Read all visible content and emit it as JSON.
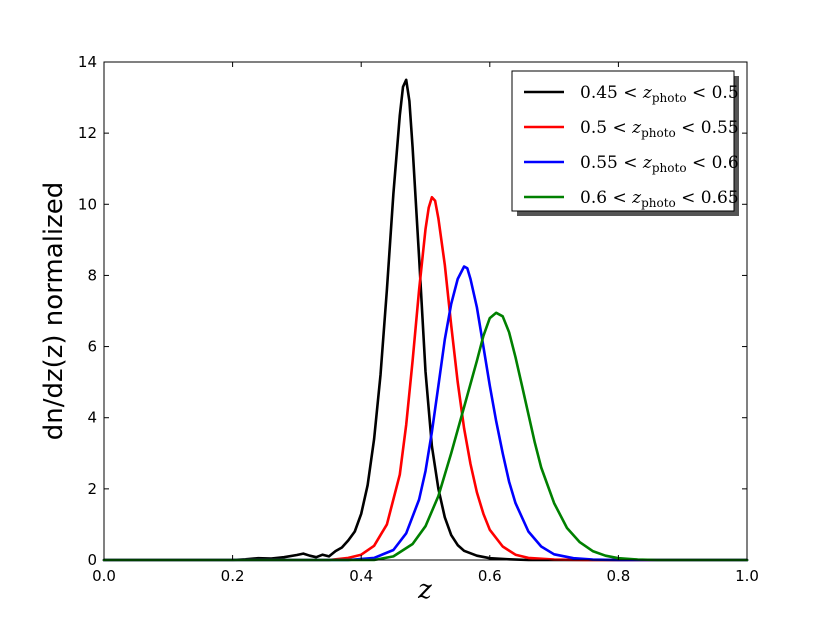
{
  "chart_data": {
    "type": "line",
    "xlabel": "z",
    "ylabel": "dn/dz(z) normalized",
    "xlim": [
      0.0,
      1.0
    ],
    "ylim": [
      0,
      14
    ],
    "x_ticks": [
      "0.0",
      "0.2",
      "0.4",
      "0.6",
      "0.8",
      "1.0"
    ],
    "y_ticks": [
      "0",
      "2",
      "4",
      "6",
      "8",
      "10",
      "12",
      "14"
    ],
    "legend_position": "top-right",
    "grid": false,
    "series": [
      {
        "name": "0.45 < z_photo < 0.5",
        "legend_left": "0.45 <",
        "legend_var": "z",
        "legend_sub": "photo",
        "legend_right": "< 0.5",
        "color": "#000000",
        "points": [
          [
            0.0,
            0
          ],
          [
            0.2,
            0.0
          ],
          [
            0.22,
            0.02
          ],
          [
            0.24,
            0.05
          ],
          [
            0.26,
            0.04
          ],
          [
            0.28,
            0.08
          ],
          [
            0.3,
            0.14
          ],
          [
            0.31,
            0.18
          ],
          [
            0.32,
            0.12
          ],
          [
            0.33,
            0.08
          ],
          [
            0.34,
            0.15
          ],
          [
            0.35,
            0.1
          ],
          [
            0.36,
            0.25
          ],
          [
            0.37,
            0.35
          ],
          [
            0.38,
            0.55
          ],
          [
            0.39,
            0.8
          ],
          [
            0.4,
            1.3
          ],
          [
            0.41,
            2.1
          ],
          [
            0.42,
            3.4
          ],
          [
            0.43,
            5.2
          ],
          [
            0.44,
            7.6
          ],
          [
            0.45,
            10.3
          ],
          [
            0.46,
            12.5
          ],
          [
            0.465,
            13.3
          ],
          [
            0.47,
            13.5
          ],
          [
            0.475,
            12.9
          ],
          [
            0.48,
            11.6
          ],
          [
            0.49,
            8.5
          ],
          [
            0.5,
            5.3
          ],
          [
            0.51,
            3.2
          ],
          [
            0.52,
            2.0
          ],
          [
            0.53,
            1.2
          ],
          [
            0.54,
            0.7
          ],
          [
            0.55,
            0.42
          ],
          [
            0.56,
            0.26
          ],
          [
            0.58,
            0.12
          ],
          [
            0.6,
            0.05
          ],
          [
            0.63,
            0.02
          ],
          [
            0.66,
            0.0
          ],
          [
            1.0,
            0.0
          ]
        ]
      },
      {
        "name": "0.5 < z_photo < 0.55",
        "legend_left": "0.5 <",
        "legend_var": "z",
        "legend_sub": "photo",
        "legend_right": "< 0.55",
        "color": "#ff0000",
        "points": [
          [
            0.0,
            0
          ],
          [
            0.35,
            0.0
          ],
          [
            0.38,
            0.06
          ],
          [
            0.4,
            0.15
          ],
          [
            0.42,
            0.4
          ],
          [
            0.44,
            1.0
          ],
          [
            0.46,
            2.4
          ],
          [
            0.47,
            3.8
          ],
          [
            0.48,
            5.6
          ],
          [
            0.49,
            7.6
          ],
          [
            0.5,
            9.3
          ],
          [
            0.505,
            9.9
          ],
          [
            0.51,
            10.2
          ],
          [
            0.515,
            10.1
          ],
          [
            0.52,
            9.6
          ],
          [
            0.53,
            8.3
          ],
          [
            0.54,
            6.6
          ],
          [
            0.55,
            5.0
          ],
          [
            0.56,
            3.7
          ],
          [
            0.57,
            2.7
          ],
          [
            0.58,
            1.9
          ],
          [
            0.59,
            1.3
          ],
          [
            0.6,
            0.85
          ],
          [
            0.62,
            0.38
          ],
          [
            0.64,
            0.15
          ],
          [
            0.66,
            0.06
          ],
          [
            0.7,
            0.01
          ],
          [
            0.75,
            0.0
          ],
          [
            1.0,
            0.0
          ]
        ]
      },
      {
        "name": "0.55 < z_photo < 0.6",
        "legend_left": "0.55 <",
        "legend_var": "z",
        "legend_sub": "photo",
        "legend_right": "< 0.6",
        "color": "#0000ff",
        "points": [
          [
            0.0,
            0
          ],
          [
            0.38,
            0.0
          ],
          [
            0.42,
            0.06
          ],
          [
            0.45,
            0.28
          ],
          [
            0.47,
            0.75
          ],
          [
            0.49,
            1.7
          ],
          [
            0.5,
            2.5
          ],
          [
            0.51,
            3.6
          ],
          [
            0.52,
            4.9
          ],
          [
            0.53,
            6.2
          ],
          [
            0.54,
            7.2
          ],
          [
            0.55,
            7.9
          ],
          [
            0.56,
            8.25
          ],
          [
            0.565,
            8.2
          ],
          [
            0.57,
            7.9
          ],
          [
            0.58,
            7.1
          ],
          [
            0.59,
            6.0
          ],
          [
            0.6,
            4.9
          ],
          [
            0.61,
            3.9
          ],
          [
            0.62,
            3.0
          ],
          [
            0.63,
            2.2
          ],
          [
            0.64,
            1.6
          ],
          [
            0.66,
            0.8
          ],
          [
            0.68,
            0.38
          ],
          [
            0.7,
            0.16
          ],
          [
            0.73,
            0.05
          ],
          [
            0.76,
            0.01
          ],
          [
            0.8,
            0.0
          ],
          [
            1.0,
            0.0
          ]
        ]
      },
      {
        "name": "0.6 < z_photo < 0.65",
        "legend_left": "0.6 <",
        "legend_var": "z",
        "legend_sub": "photo",
        "legend_right": "< 0.65",
        "color": "#008000",
        "points": [
          [
            0.0,
            0
          ],
          [
            0.42,
            0.0
          ],
          [
            0.45,
            0.1
          ],
          [
            0.48,
            0.45
          ],
          [
            0.5,
            0.95
          ],
          [
            0.52,
            1.8
          ],
          [
            0.54,
            3.0
          ],
          [
            0.56,
            4.3
          ],
          [
            0.58,
            5.6
          ],
          [
            0.59,
            6.3
          ],
          [
            0.6,
            6.8
          ],
          [
            0.61,
            6.95
          ],
          [
            0.62,
            6.85
          ],
          [
            0.63,
            6.4
          ],
          [
            0.64,
            5.7
          ],
          [
            0.65,
            4.9
          ],
          [
            0.66,
            4.1
          ],
          [
            0.67,
            3.3
          ],
          [
            0.68,
            2.6
          ],
          [
            0.7,
            1.6
          ],
          [
            0.72,
            0.9
          ],
          [
            0.74,
            0.5
          ],
          [
            0.76,
            0.25
          ],
          [
            0.78,
            0.12
          ],
          [
            0.8,
            0.05
          ],
          [
            0.83,
            0.015
          ],
          [
            0.86,
            0.0
          ],
          [
            1.0,
            0.0
          ]
        ]
      }
    ]
  }
}
